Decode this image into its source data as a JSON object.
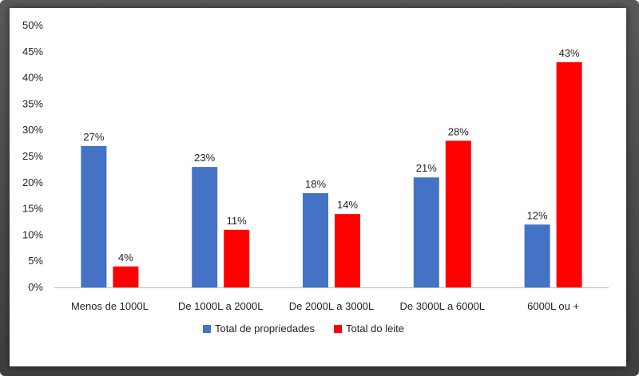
{
  "chart_data": {
    "type": "bar",
    "categories": [
      "Menos de 1000L",
      "De 1000L a 2000L",
      "De 2000L a 3000L",
      "De 3000L a 6000L",
      "6000L ou +"
    ],
    "series": [
      {
        "name": "Total de propriedades",
        "values": [
          27,
          23,
          18,
          21,
          12
        ],
        "labels": [
          "27%",
          "23%",
          "18%",
          "21%",
          "12%"
        ],
        "color": "#4472C4"
      },
      {
        "name": "Total do leite",
        "values": [
          4,
          11,
          14,
          28,
          43
        ],
        "labels": [
          "4%",
          "11%",
          "14%",
          "28%",
          "43%"
        ],
        "color": "#FF0000"
      }
    ],
    "ylim": [
      0,
      50
    ],
    "yticks": [
      0,
      5,
      10,
      15,
      20,
      25,
      30,
      35,
      40,
      45,
      50
    ],
    "ytick_labels": [
      "0%",
      "5%",
      "10%",
      "15%",
      "20%",
      "25%",
      "30%",
      "35%",
      "40%",
      "45%",
      "50%"
    ],
    "title": "",
    "xlabel": "",
    "ylabel": "",
    "grid": false,
    "legend": "bottom"
  }
}
